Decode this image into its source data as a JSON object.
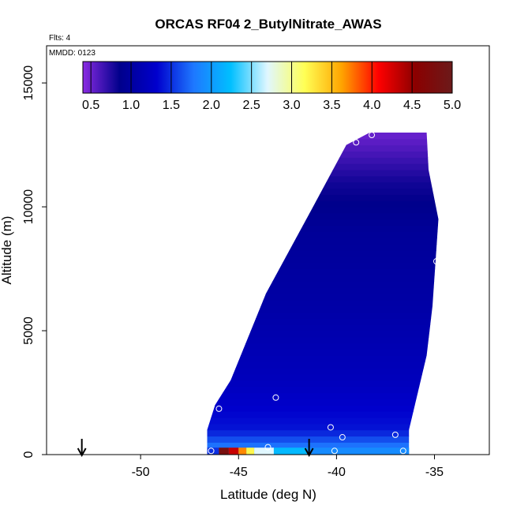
{
  "chart_data": {
    "type": "heatmap",
    "title": "ORCAS RF04 2_ButylNitrate_AWAS",
    "flights_label": "Flts: 4",
    "date_label": "MMDD: 0123",
    "xlabel": "Latitude (deg N)",
    "ylabel": "Altitude (m)",
    "xlim": [
      -54.8,
      -32.2
    ],
    "ylim": [
      0,
      16500
    ],
    "xticks": [
      -50,
      -45,
      -40,
      -35
    ],
    "xtick_labels": [
      "-50",
      "-45",
      "-40",
      "-35"
    ],
    "yticks": [
      0,
      5000,
      10000,
      15000
    ],
    "ytick_labels": [
      "0",
      "5000",
      "10000",
      "15000"
    ],
    "colorbar": {
      "range": [
        0.4,
        5.0
      ],
      "ticks": [
        0.5,
        1.0,
        1.5,
        2.0,
        2.5,
        3.0,
        3.5,
        4.0,
        4.5,
        5.0
      ],
      "tick_labels": [
        "0.5",
        "1.0",
        "1.5",
        "2.0",
        "2.5",
        "3.0",
        "3.5",
        "4.0",
        "4.5",
        "5.0"
      ],
      "colors": [
        "#8a2be2",
        "#00008b",
        "#0000cd",
        "#1e78ff",
        "#00bfff",
        "#e0f7ff",
        "#ffff55",
        "#ffa500",
        "#ff0000",
        "#8b0000",
        "#6b1a1a"
      ]
    },
    "domain_outline": [
      {
        "lat": -46.6,
        "alt": 0
      },
      {
        "lat": -36.3,
        "alt": 0
      },
      {
        "lat": -36.3,
        "alt": 1000
      },
      {
        "lat": -35.4,
        "alt": 4000
      },
      {
        "lat": -35.1,
        "alt": 6000
      },
      {
        "lat": -34.8,
        "alt": 9500
      },
      {
        "lat": -35.3,
        "alt": 11500
      },
      {
        "lat": -35.4,
        "alt": 13000
      },
      {
        "lat": -38.3,
        "alt": 13000
      },
      {
        "lat": -39.5,
        "alt": 12500
      },
      {
        "lat": -41.2,
        "alt": 10000
      },
      {
        "lat": -43.6,
        "alt": 6500
      },
      {
        "lat": -45.4,
        "alt": 3000
      },
      {
        "lat": -46.2,
        "alt": 2000
      },
      {
        "lat": -46.6,
        "alt": 1000
      }
    ],
    "field_by_altitude": [
      {
        "alt": 0,
        "value": 2.0
      },
      {
        "alt": 300,
        "value": 1.8
      },
      {
        "alt": 1000,
        "value": 1.4
      },
      {
        "alt": 3000,
        "value": 1.2
      },
      {
        "alt": 6000,
        "value": 1.05
      },
      {
        "alt": 9000,
        "value": 0.95
      },
      {
        "alt": 11000,
        "value": 0.8
      },
      {
        "alt": 13000,
        "value": 0.5
      }
    ],
    "surface_band": [
      {
        "lat_start": -46.6,
        "lat_end": -46.0,
        "value": 1.5
      },
      {
        "lat_start": -46.0,
        "lat_end": -45.5,
        "value": 4.8
      },
      {
        "lat_start": -45.5,
        "lat_end": -45.0,
        "value": 4.3
      },
      {
        "lat_start": -45.0,
        "lat_end": -44.6,
        "value": 3.7
      },
      {
        "lat_start": -44.6,
        "lat_end": -44.2,
        "value": 3.2
      },
      {
        "lat_start": -44.2,
        "lat_end": -43.2,
        "value": 2.7
      },
      {
        "lat_start": -43.2,
        "lat_end": -41.5,
        "value": 2.2
      },
      {
        "lat_start": -41.5,
        "lat_end": -36.3,
        "value": 1.9
      }
    ],
    "samples": [
      {
        "lat": -46.4,
        "alt": 150
      },
      {
        "lat": -46.0,
        "alt": 1850
      },
      {
        "lat": -43.5,
        "alt": 300
      },
      {
        "lat": -43.1,
        "alt": 2300
      },
      {
        "lat": -40.3,
        "alt": 1100
      },
      {
        "lat": -40.1,
        "alt": 150
      },
      {
        "lat": -39.7,
        "alt": 700
      },
      {
        "lat": -38.2,
        "alt": 12900
      },
      {
        "lat": -37.0,
        "alt": 800
      },
      {
        "lat": -36.6,
        "alt": 150
      },
      {
        "lat": -35.2,
        "alt": 12900
      },
      {
        "lat": -39.0,
        "alt": 12600
      },
      {
        "lat": -34.9,
        "alt": 7800
      }
    ],
    "arrows": [
      {
        "lat": -53.0
      },
      {
        "lat": -41.4
      }
    ]
  }
}
